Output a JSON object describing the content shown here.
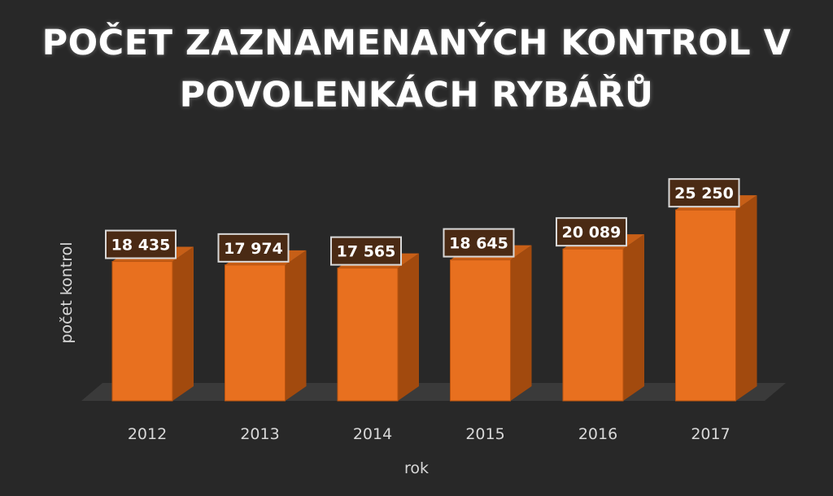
{
  "chart_data": {
    "type": "bar",
    "title_lines": [
      "POČET ZAZNAMENANÝCH KONTROL V",
      "POVOLENKÁCH RYBÁŘŮ"
    ],
    "xlabel": "rok",
    "ylabel": "počet kontrol",
    "categories": [
      "2012",
      "2013",
      "2014",
      "2015",
      "2016",
      "2017"
    ],
    "values": [
      18435,
      17974,
      17565,
      18645,
      20089,
      25250
    ],
    "data_labels": [
      "18 435",
      "17 974",
      "17 565",
      "18 645",
      "20 089",
      "25 250"
    ],
    "grid": false,
    "legend": "none",
    "colors": {
      "background": "#282828",
      "bar_front": "#e8701f",
      "bar_side": "#a24a0e",
      "bar_top": "#c75f17",
      "floor": "#3a3a3a",
      "label_box": "#4a2a14",
      "label_border": "#d9d9d9",
      "text": "#ffffff",
      "axis_text": "#d8d8d8"
    }
  }
}
